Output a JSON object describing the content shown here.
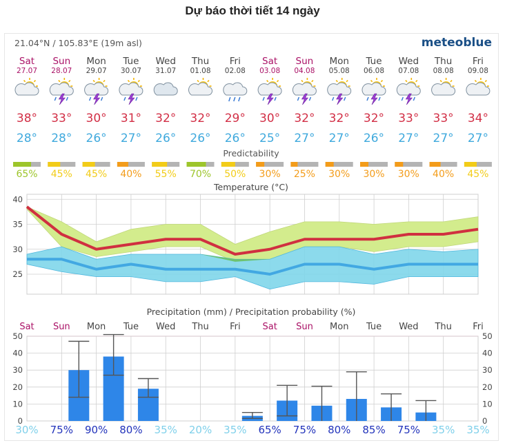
{
  "page_title": "Dự báo thời tiết 14 ngày",
  "location": "21.04°N / 105.83°E (19m asl)",
  "brand": "meteoblue",
  "days": [
    {
      "dow": "Sat",
      "date": "27.07",
      "weekend": true,
      "icon": "sun-cloud-icon",
      "tmax": "38°",
      "tmin": "28°",
      "pred": "65%",
      "pred_value": 65,
      "pred_color": "#9dc52b"
    },
    {
      "dow": "Sun",
      "date": "28.07",
      "weekend": true,
      "icon": "thunderstorm-icon",
      "tmax": "33°",
      "tmin": "28°",
      "pred": "45%",
      "pred_value": 45,
      "pred_color": "#f2cc18"
    },
    {
      "dow": "Mon",
      "date": "29.07",
      "weekend": false,
      "icon": "thunderstorm-icon",
      "tmax": "30°",
      "tmin": "26°",
      "pred": "45%",
      "pred_value": 45,
      "pred_color": "#f2cc18"
    },
    {
      "dow": "Tue",
      "date": "30.07",
      "weekend": false,
      "icon": "thunderstorm-icon",
      "tmax": "31°",
      "tmin": "27°",
      "pred": "40%",
      "pred_value": 40,
      "pred_color": "#f39c1a"
    },
    {
      "dow": "Wed",
      "date": "31.07",
      "weekend": false,
      "icon": "cloud-icon",
      "tmax": "32°",
      "tmin": "26°",
      "pred": "55%",
      "pred_value": 55,
      "pred_color": "#f2cc18"
    },
    {
      "dow": "Thu",
      "date": "01.08",
      "weekend": false,
      "icon": "sun-cloud-icon",
      "tmax": "32°",
      "tmin": "26°",
      "pred": "70%",
      "pred_value": 70,
      "pred_color": "#9dc52b"
    },
    {
      "dow": "Fri",
      "date": "02.08",
      "weekend": false,
      "icon": "rain-icon",
      "tmax": "29°",
      "tmin": "26°",
      "pred": "50%",
      "pred_value": 50,
      "pred_color": "#f2cc18"
    },
    {
      "dow": "Sat",
      "date": "03.08",
      "weekend": true,
      "icon": "thunderstorm-icon",
      "tmax": "30°",
      "tmin": "25°",
      "pred": "30%",
      "pred_value": 30,
      "pred_color": "#f39c1a"
    },
    {
      "dow": "Sun",
      "date": "04.08",
      "weekend": true,
      "icon": "thunderstorm-icon",
      "tmax": "32°",
      "tmin": "27°",
      "pred": "25%",
      "pred_value": 25,
      "pred_color": "#f39c1a"
    },
    {
      "dow": "Mon",
      "date": "05.08",
      "weekend": false,
      "icon": "thunderstorm-icon",
      "tmax": "32°",
      "tmin": "27°",
      "pred": "30%",
      "pred_value": 30,
      "pred_color": "#f39c1a"
    },
    {
      "dow": "Tue",
      "date": "06.08",
      "weekend": false,
      "icon": "thunderstorm-icon",
      "tmax": "32°",
      "tmin": "26°",
      "pred": "30%",
      "pred_value": 30,
      "pred_color": "#f39c1a"
    },
    {
      "dow": "Wed",
      "date": "07.08",
      "weekend": false,
      "icon": "thunderstorm-icon",
      "tmax": "33°",
      "tmin": "27°",
      "pred": "30%",
      "pred_value": 30,
      "pred_color": "#f39c1a"
    },
    {
      "dow": "Thu",
      "date": "08.08",
      "weekend": false,
      "icon": "sun-cloud-icon",
      "tmax": "33°",
      "tmin": "27°",
      "pred": "40%",
      "pred_value": 40,
      "pred_color": "#f39c1a"
    },
    {
      "dow": "Fri",
      "date": "09.08",
      "weekend": false,
      "icon": "sun-cloud-icon",
      "tmax": "34°",
      "tmin": "27°",
      "pred": "45%",
      "pred_value": 45,
      "pred_color": "#f2cc18"
    }
  ],
  "colors": {
    "weekend": "#aa1166",
    "tmax": "#d22f46",
    "tmin": "#3fa9dd",
    "max_band": "#d3ec8d",
    "min_band": "#7fd6ea",
    "overlap_band": "#69c05a",
    "max_line": "#d03040",
    "min_line": "#42a8e2",
    "bar": "#2e86e8",
    "grid": "#cfcfcf",
    "pred_grey": "#b4b4b4"
  },
  "chart_data": [
    {
      "type": "line",
      "title": "Temperature (°C)",
      "x": [
        "Sat",
        "Sun",
        "Mon",
        "Tue",
        "Wed",
        "Thu",
        "Fri",
        "Sat",
        "Sun",
        "Mon",
        "Tue",
        "Wed",
        "Thu",
        "Fri"
      ],
      "ylim": [
        21,
        41
      ],
      "yticks": [
        25,
        30,
        35,
        40
      ],
      "grid": true,
      "series": [
        {
          "values": [
            38.5,
            33,
            30,
            31,
            32,
            32,
            29,
            30,
            32,
            32,
            32,
            33,
            33,
            34
          ]
        },
        {
          "values": [
            38.5,
            35.5,
            31.5,
            34,
            35,
            35,
            31,
            33.5,
            35.5,
            35.5,
            35,
            35.5,
            35.5,
            36.5
          ]
        },
        {
          "values": [
            38,
            30.5,
            28.5,
            29.5,
            30.5,
            30.5,
            27.5,
            28,
            30.5,
            30.5,
            29.5,
            30.5,
            30.5,
            31.5
          ]
        },
        {
          "values": [
            28,
            28,
            26,
            27,
            26,
            26,
            26,
            25,
            27,
            27,
            26,
            27,
            27,
            27
          ]
        },
        {
          "values": [
            29,
            30.5,
            28,
            29,
            29,
            29,
            28,
            28,
            30.5,
            30.5,
            29,
            30,
            29.5,
            30
          ]
        },
        {
          "values": [
            27,
            25.5,
            24.5,
            24.5,
            23.5,
            23.5,
            24.5,
            22,
            23.5,
            23.5,
            23,
            24.5,
            24.5,
            24.5
          ]
        }
      ]
    },
    {
      "type": "bar",
      "title": "Precipitation (mm) / Precipitation probability (%)",
      "categories": [
        "Sat",
        "Sun",
        "Mon",
        "Tue",
        "Wed",
        "Thu",
        "Fri",
        "Sat",
        "Sun",
        "Mon",
        "Tue",
        "Wed",
        "Thu",
        "Fri"
      ],
      "values": [
        0,
        30,
        38,
        19,
        0,
        0,
        3,
        12,
        9,
        13,
        8,
        5,
        0,
        0
      ],
      "range_low": [
        0,
        14,
        27,
        14,
        0,
        0,
        1.5,
        3,
        0,
        0,
        0,
        0,
        0,
        0
      ],
      "range_high": [
        0,
        47,
        51,
        25,
        0,
        0,
        5,
        21,
        20.5,
        29,
        16,
        12,
        0,
        0
      ],
      "probability": [
        "30%",
        "75%",
        "90%",
        "80%",
        "35%",
        "20%",
        "35%",
        "65%",
        "75%",
        "80%",
        "85%",
        "75%",
        "35%",
        "35%"
      ],
      "probability_values": [
        30,
        75,
        90,
        80,
        35,
        20,
        35,
        65,
        75,
        80,
        85,
        75,
        35,
        35
      ],
      "ylim": [
        0,
        50
      ],
      "yticks": [
        0,
        10,
        20,
        30,
        40,
        50
      ]
    }
  ]
}
